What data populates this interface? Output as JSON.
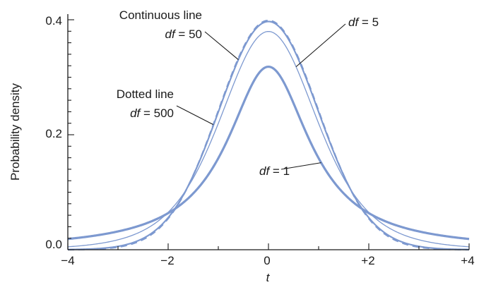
{
  "chart_data": {
    "type": "line",
    "xlabel": "t",
    "ylabel": "Probability density",
    "xlim": [
      -4,
      4
    ],
    "ylim": [
      0,
      0.4
    ],
    "x_ticks": [
      -4,
      -2,
      0,
      2,
      4
    ],
    "x_tick_labels": [
      "−4",
      "−2",
      "0",
      "+2",
      "+4"
    ],
    "y_ticks": [
      0,
      0.2,
      0.4
    ],
    "y_tick_labels": [
      "0.0",
      "0.2",
      "0.4"
    ],
    "series": [
      {
        "df": 1,
        "style": "solid-thick",
        "x": [
          -4,
          -3,
          -2,
          -1.5,
          -1,
          -0.5,
          0,
          0.5,
          1,
          1.5,
          2,
          3,
          4
        ],
        "y": [
          0.0187,
          0.0318,
          0.0637,
          0.0979,
          0.1592,
          0.2546,
          0.3183,
          0.2546,
          0.1592,
          0.0979,
          0.0637,
          0.0318,
          0.0187
        ]
      },
      {
        "df": 5,
        "style": "solid-thin",
        "x": [
          -4,
          -3,
          -2,
          -1.5,
          -1,
          -0.5,
          0,
          0.5,
          1,
          1.5,
          2,
          3,
          4
        ],
        "y": [
          0.0051,
          0.0173,
          0.0651,
          0.1245,
          0.2197,
          0.3279,
          0.3796,
          0.3279,
          0.2197,
          0.1245,
          0.0651,
          0.0173,
          0.0051
        ]
      },
      {
        "df": 50,
        "style": "solid",
        "x": [
          -4,
          -3,
          -2,
          -1.5,
          -1,
          -0.5,
          0,
          0.5,
          1,
          1.5,
          2,
          3,
          4
        ],
        "y": [
          0.0005,
          0.0064,
          0.0563,
          0.1299,
          0.241,
          0.3501,
          0.397,
          0.3501,
          0.241,
          0.1299,
          0.0563,
          0.0064,
          0.0005
        ]
      },
      {
        "df": 500,
        "style": "dashed",
        "x": [
          -4,
          -3,
          -2,
          -1.5,
          -1,
          -0.5,
          0,
          0.5,
          1,
          1.5,
          2,
          3,
          4
        ],
        "y": [
          0.0002,
          0.0047,
          0.0543,
          0.1297,
          0.2418,
          0.3519,
          0.3987,
          0.3519,
          0.2418,
          0.1297,
          0.0543,
          0.0047,
          0.0002
        ]
      }
    ],
    "annotations": [
      {
        "id": "cont",
        "line1": "Continuous line",
        "var": "df",
        "eq": " = ",
        "val": "50",
        "target_x": -0.6,
        "target_series": 50
      },
      {
        "id": "df5",
        "var": "df",
        "eq": " = ",
        "val": "5",
        "target_x": 0.55,
        "target_series": 5
      },
      {
        "id": "dot",
        "line1": "Dotted line",
        "var": "df",
        "eq": " = ",
        "val": "500",
        "target_x": -1.1,
        "target_series": 500
      },
      {
        "id": "df1",
        "var": "df",
        "eq": " = ",
        "val": "1",
        "target_x": 1.05,
        "target_series": 1
      }
    ],
    "colors": {
      "curve": "#7d99d0",
      "axis": "#1a1a1a",
      "text": "#1a1a1a",
      "pointer": "#1a1a1a"
    }
  }
}
